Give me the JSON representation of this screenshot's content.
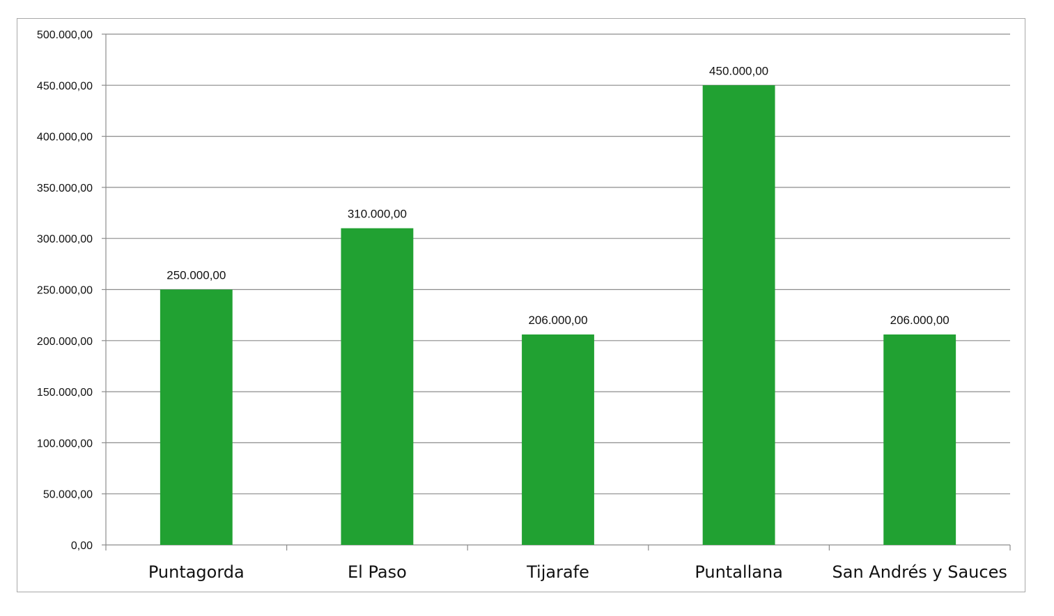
{
  "chart_data": {
    "type": "bar",
    "categories": [
      "Puntagorda",
      "El Paso",
      "Tijarafe",
      "Puntallana",
      "San Andrés y Sauces"
    ],
    "values": [
      250000,
      310000,
      206000,
      450000,
      206000
    ],
    "value_labels": [
      "250.000,00",
      "310.000,00",
      "206.000,00",
      "450.000,00",
      "206.000,00"
    ],
    "title": "",
    "xlabel": "",
    "ylabel": "",
    "ylim": [
      0,
      500000
    ],
    "ytick_values": [
      0,
      50000,
      100000,
      150000,
      200000,
      250000,
      300000,
      350000,
      400000,
      450000,
      500000
    ],
    "ytick_labels": [
      "0,00",
      "50.000,00",
      "100.000,00",
      "150.000,00",
      "200.000,00",
      "250.000,00",
      "300.000,00",
      "350.000,00",
      "400.000,00",
      "450.000,00",
      "500.000,00"
    ],
    "grid": true,
    "legend": "none",
    "bar_color": "#21a132",
    "grid_color": "#8c8c8c"
  }
}
